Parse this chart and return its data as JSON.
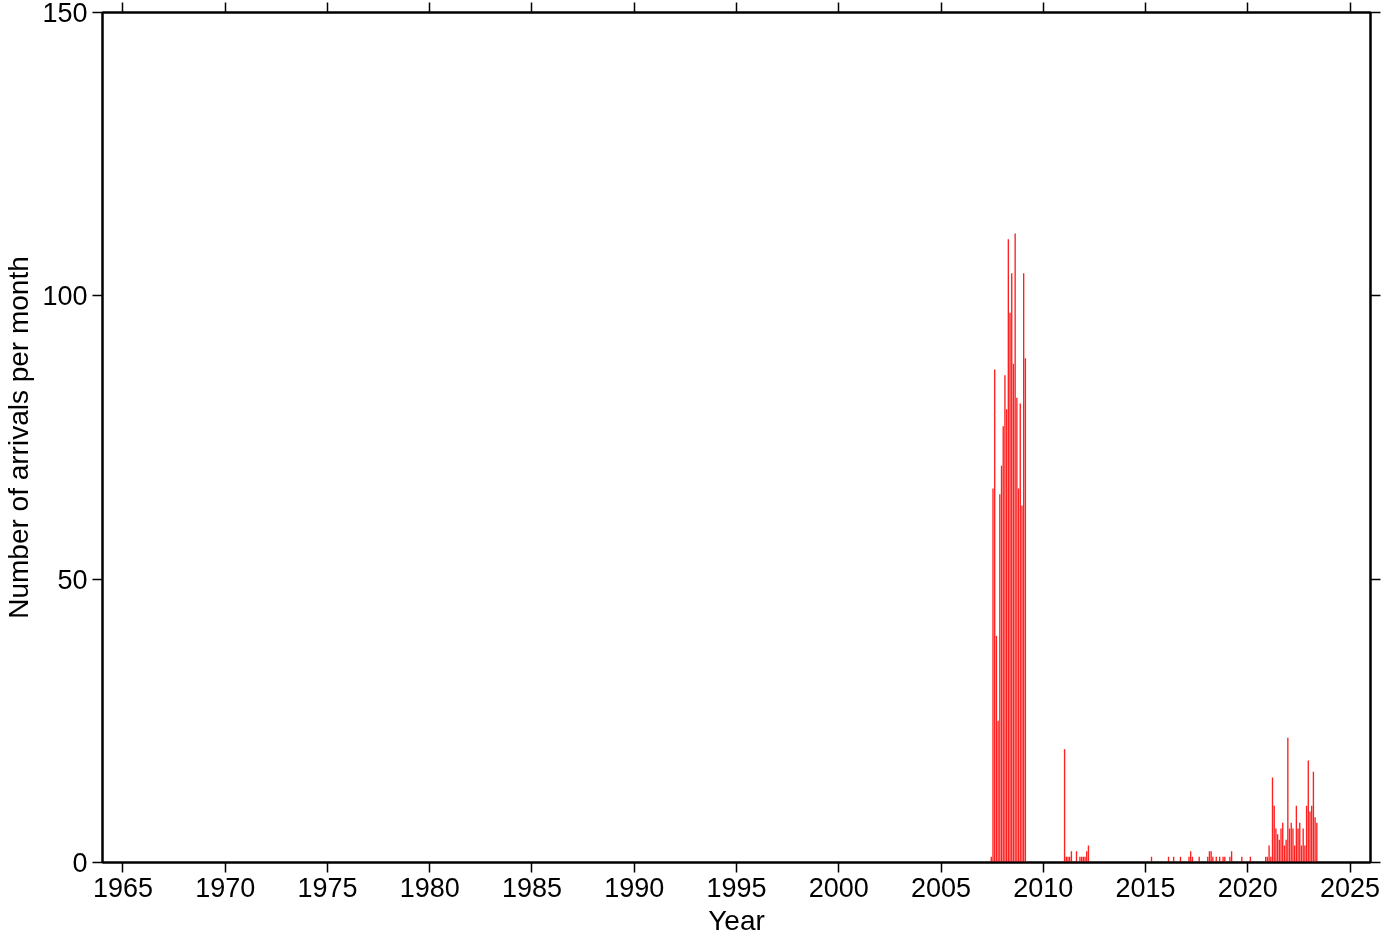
{
  "chart_data": {
    "type": "bar",
    "xlabel": "Year",
    "ylabel": "Number of arrivals per month",
    "x": [
      "2007-06",
      "2007-07",
      "2007-08",
      "2007-09",
      "2007-10",
      "2007-11",
      "2007-12",
      "2008-01",
      "2008-02",
      "2008-03",
      "2008-04",
      "2008-05",
      "2008-06",
      "2008-07",
      "2008-08",
      "2008-09",
      "2008-10",
      "2008-11",
      "2008-12",
      "2009-01",
      "2009-02",
      "2011-01",
      "2011-02",
      "2011-03",
      "2011-04",
      "2011-05",
      "2011-08",
      "2011-10",
      "2011-11",
      "2011-12",
      "2012-01",
      "2012-02",
      "2012-03",
      "2015-04",
      "2016-02",
      "2016-05",
      "2016-09",
      "2017-02",
      "2017-03",
      "2017-04",
      "2017-08",
      "2018-01",
      "2018-02",
      "2018-03",
      "2018-04",
      "2018-06",
      "2018-08",
      "2018-10",
      "2018-11",
      "2019-02",
      "2019-03",
      "2019-09",
      "2020-02",
      "2020-11",
      "2020-12",
      "2021-01",
      "2021-02",
      "2021-03",
      "2021-04",
      "2021-05",
      "2021-06",
      "2021-07",
      "2021-08",
      "2021-09",
      "2021-10",
      "2021-11",
      "2021-12",
      "2022-01",
      "2022-02",
      "2022-03",
      "2022-04",
      "2022-05",
      "2022-06",
      "2022-07",
      "2022-08",
      "2022-09",
      "2022-10",
      "2022-11",
      "2022-12",
      "2023-01",
      "2023-02",
      "2023-03",
      "2023-04",
      "2023-05"
    ],
    "values": [
      1,
      66,
      87,
      40,
      25,
      65,
      70,
      77,
      86,
      80,
      110,
      97,
      104,
      88,
      111,
      82,
      66,
      81,
      63,
      104,
      89,
      20,
      1,
      1,
      1,
      2,
      2,
      1,
      1,
      1,
      1,
      2,
      3,
      1,
      1,
      1,
      1,
      1,
      2,
      1,
      1,
      1,
      2,
      2,
      1,
      1,
      1,
      1,
      1,
      1,
      2,
      1,
      1,
      1,
      1,
      3,
      1,
      15,
      10,
      6,
      5,
      4,
      6,
      7,
      3,
      4,
      22,
      6,
      7,
      6,
      3,
      10,
      6,
      7,
      3,
      6,
      3,
      10,
      18,
      9,
      10,
      16,
      8,
      7
    ],
    "color": "#ff2020",
    "xlim": [
      "1964",
      "2026"
    ],
    "xticks": [
      "1965",
      "1970",
      "1975",
      "1980",
      "1985",
      "1990",
      "1995",
      "2000",
      "2005",
      "2010",
      "2015",
      "2020",
      "2025"
    ],
    "ylim": [
      0,
      150
    ],
    "yticks": [
      0,
      50,
      100,
      150
    ],
    "grid": false
  }
}
